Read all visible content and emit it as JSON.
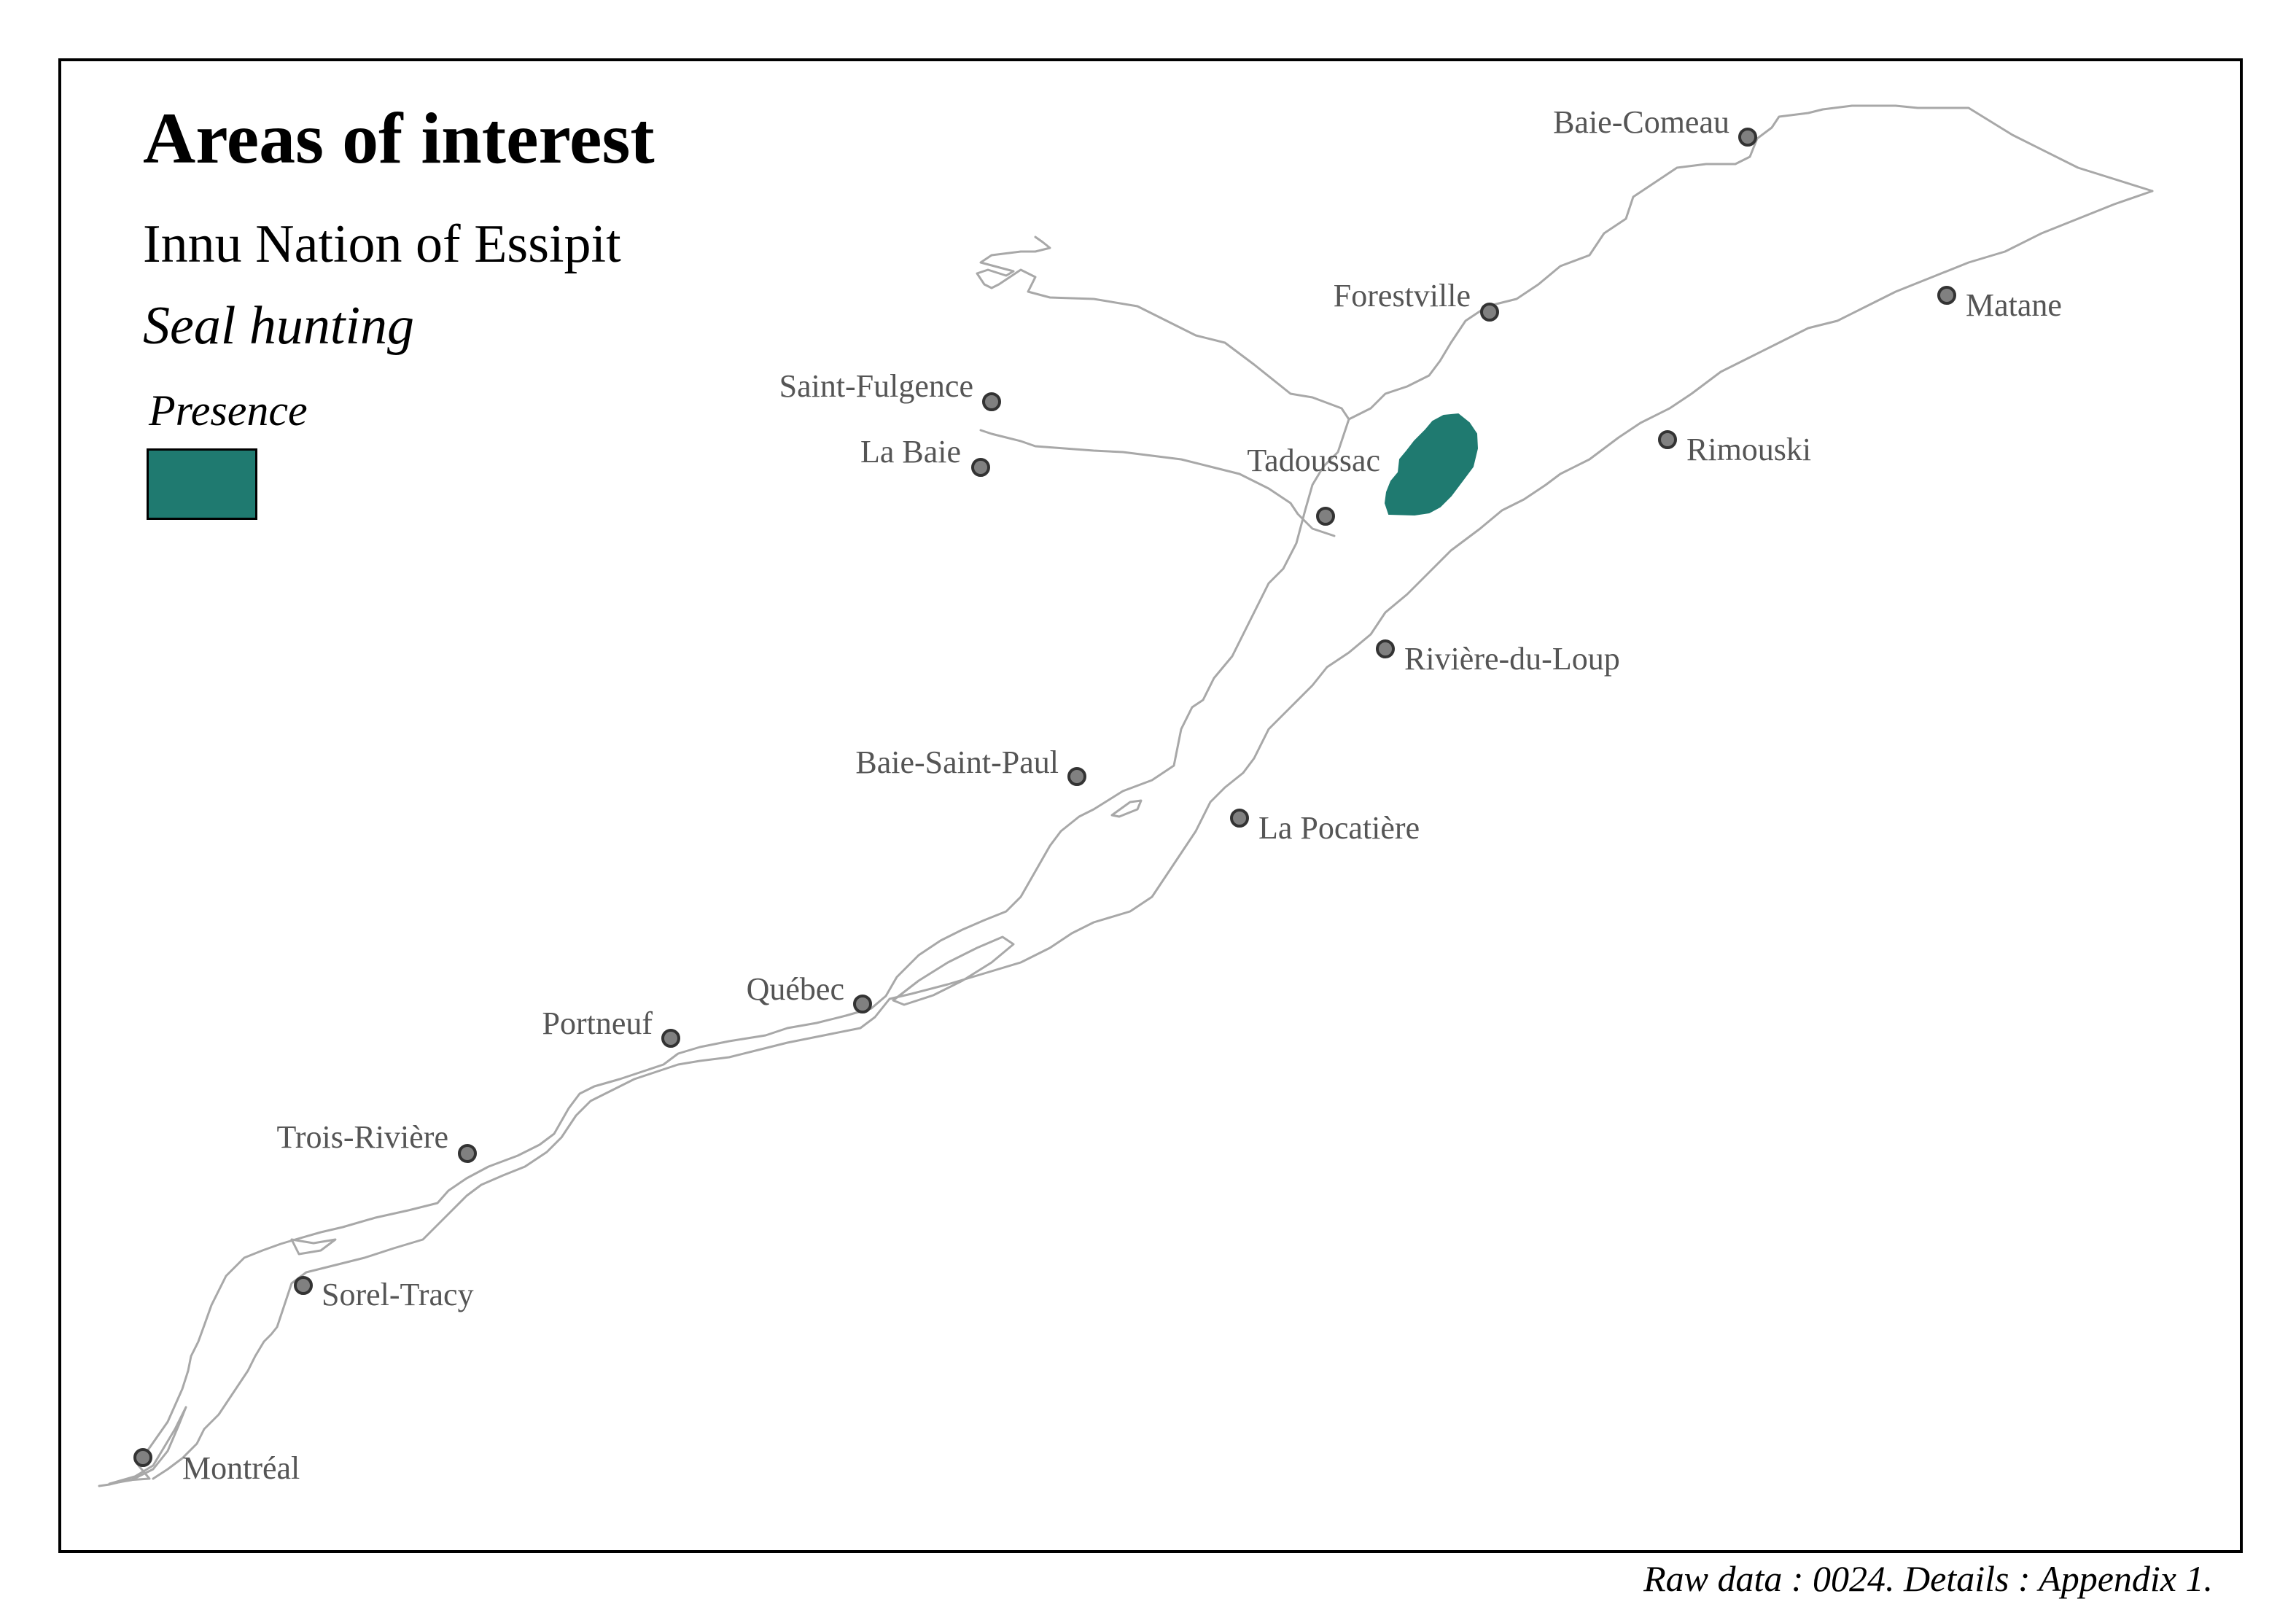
{
  "title": "Areas of interest",
  "subtitle": "Innu Nation of Essipit",
  "theme": "Seal hunting",
  "legend": {
    "title": "Presence",
    "swatch_color": "#1f7a70"
  },
  "caption": "Raw data : 0024. Details : Appendix 1.",
  "colors": {
    "presence_fill": "#1f7a70",
    "shoreline": "#a8a8a8",
    "city_dot": "#808080",
    "city_label": "#555555"
  },
  "cities": [
    {
      "name": "Baie-Comeau"
    },
    {
      "name": "Forestville"
    },
    {
      "name": "Matane"
    },
    {
      "name": "Saint-Fulgence"
    },
    {
      "name": "La Baie"
    },
    {
      "name": "Tadoussac"
    },
    {
      "name": "Rimouski"
    },
    {
      "name": "Rivière-du-Loup"
    },
    {
      "name": "Baie-Saint-Paul"
    },
    {
      "name": "La Pocatière"
    },
    {
      "name": "Québec"
    },
    {
      "name": "Portneuf"
    },
    {
      "name": "Trois-Rivière"
    },
    {
      "name": "Sorel-Tracy"
    },
    {
      "name": "Montréal"
    }
  ]
}
